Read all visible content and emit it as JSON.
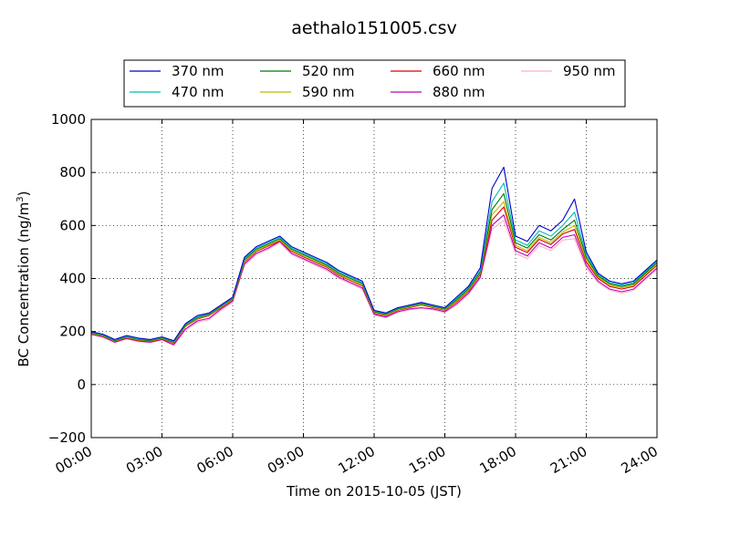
{
  "chart_data": {
    "type": "line",
    "title": "aethalo151005.csv",
    "xlabel": "Time on 2015-10-05 (JST)",
    "ylabel": "BC Concentration (ng/m³)",
    "ylabel_parts": {
      "main": "BC Concentration (ng/m",
      "sup": "3",
      "close": ")"
    },
    "xlim": [
      "00:00",
      "24:00"
    ],
    "ylim": [
      -200,
      1000
    ],
    "xticks": [
      "00:00",
      "03:00",
      "06:00",
      "09:00",
      "12:00",
      "15:00",
      "18:00",
      "21:00",
      "24:00"
    ],
    "xticks_hours": [
      0,
      3,
      6,
      9,
      12,
      15,
      18,
      21,
      24
    ],
    "yticks": [
      -200,
      0,
      200,
      400,
      600,
      800,
      1000
    ],
    "ytick_labels": [
      "−200",
      "0",
      "200",
      "400",
      "600",
      "800",
      "1000"
    ],
    "grid": true,
    "legend_position": "top-center",
    "x_hours": [
      0,
      0.5,
      1,
      1.5,
      2,
      2.5,
      3,
      3.5,
      4,
      4.5,
      5,
      5.5,
      6,
      6.5,
      7,
      7.5,
      8,
      8.5,
      9,
      9.5,
      10,
      10.5,
      11,
      11.5,
      12,
      12.5,
      13,
      13.5,
      14,
      14.5,
      15,
      15.5,
      16,
      16.5,
      17,
      17.5,
      18,
      18.5,
      19,
      19.5,
      20,
      20.5,
      21,
      21.5,
      22,
      22.5,
      23,
      23.5,
      24
    ],
    "series": [
      {
        "name": "370 nm",
        "color": "#0000cc",
        "values": [
          200,
          190,
          170,
          185,
          175,
          170,
          180,
          165,
          230,
          260,
          270,
          300,
          330,
          480,
          520,
          540,
          560,
          520,
          500,
          480,
          460,
          430,
          410,
          390,
          280,
          270,
          290,
          300,
          310,
          300,
          290,
          330,
          370,
          440,
          740,
          820,
          560,
          540,
          600,
          580,
          620,
          700,
          500,
          420,
          390,
          380,
          390,
          430,
          470
        ]
      },
      {
        "name": "470 nm",
        "color": "#00bbbb",
        "values": [
          198,
          188,
          168,
          182,
          172,
          168,
          178,
          162,
          228,
          255,
          268,
          298,
          328,
          475,
          515,
          535,
          555,
          515,
          495,
          475,
          455,
          425,
          405,
          385,
          278,
          268,
          288,
          298,
          308,
          298,
          288,
          325,
          365,
          430,
          690,
          760,
          545,
          525,
          580,
          560,
          600,
          650,
          490,
          415,
          385,
          375,
          385,
          425,
          465
        ]
      },
      {
        "name": "520 nm",
        "color": "#007700",
        "values": [
          195,
          185,
          166,
          180,
          170,
          166,
          176,
          160,
          225,
          252,
          265,
          295,
          325,
          470,
          510,
          530,
          550,
          510,
          490,
          470,
          450,
          420,
          400,
          380,
          275,
          265,
          285,
          295,
          305,
          295,
          285,
          320,
          360,
          425,
          660,
          720,
          535,
          515,
          565,
          545,
          585,
          620,
          480,
          410,
          380,
          370,
          380,
          420,
          460
        ]
      },
      {
        "name": "590 nm",
        "color": "#bbbb00",
        "values": [
          193,
          183,
          164,
          178,
          168,
          164,
          174,
          158,
          222,
          249,
          262,
          292,
          322,
          465,
          505,
          525,
          545,
          505,
          485,
          465,
          445,
          415,
          395,
          375,
          272,
          262,
          282,
          292,
          302,
          292,
          282,
          315,
          355,
          420,
          640,
          690,
          525,
          505,
          555,
          535,
          575,
          600,
          470,
          405,
          375,
          365,
          375,
          415,
          455
        ]
      },
      {
        "name": "660 nm",
        "color": "#dd0000",
        "values": [
          192,
          182,
          163,
          176,
          166,
          162,
          172,
          156,
          220,
          247,
          260,
          290,
          320,
          462,
          502,
          522,
          542,
          502,
          482,
          462,
          442,
          412,
          392,
          372,
          270,
          260,
          280,
          290,
          300,
          290,
          280,
          312,
          352,
          415,
          620,
          670,
          518,
          498,
          548,
          528,
          568,
          585,
          462,
          400,
          370,
          360,
          370,
          410,
          450
        ]
      },
      {
        "name": "880 nm",
        "color": "#bb00bb",
        "values": [
          190,
          180,
          160,
          174,
          164,
          160,
          170,
          150,
          210,
          240,
          250,
          285,
          315,
          455,
          495,
          515,
          540,
          495,
          475,
          455,
          435,
          405,
          385,
          365,
          265,
          255,
          275,
          285,
          290,
          285,
          275,
          305,
          345,
          405,
          600,
          640,
          505,
          485,
          535,
          515,
          555,
          565,
          450,
          390,
          360,
          350,
          360,
          400,
          440
        ]
      },
      {
        "name": "950 nm",
        "color": "#ffb0c0",
        "values": [
          188,
          178,
          158,
          172,
          162,
          158,
          168,
          148,
          205,
          235,
          245,
          280,
          310,
          450,
          490,
          510,
          535,
          490,
          470,
          450,
          430,
          400,
          380,
          360,
          262,
          252,
          272,
          282,
          288,
          282,
          272,
          300,
          340,
          400,
          585,
          620,
          495,
          475,
          525,
          505,
          545,
          550,
          440,
          385,
          355,
          345,
          355,
          395,
          435
        ]
      }
    ]
  }
}
